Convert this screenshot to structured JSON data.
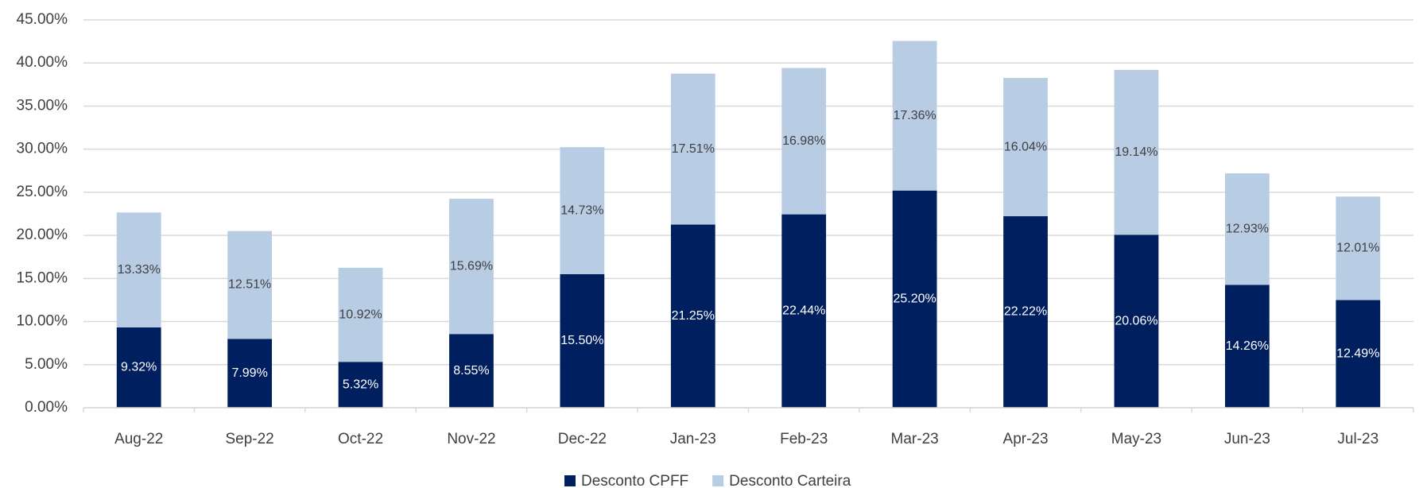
{
  "chart_data": {
    "type": "stacked_bar",
    "categories": [
      "Aug-22",
      "Sep-22",
      "Oct-22",
      "Nov-22",
      "Dec-22",
      "Jan-23",
      "Feb-23",
      "Mar-23",
      "Apr-23",
      "May-23",
      "Jun-23",
      "Jul-23"
    ],
    "series": [
      {
        "name": "Desconto CPFF",
        "color": "#001f5f",
        "values": [
          9.32,
          7.99,
          5.32,
          8.55,
          15.5,
          21.25,
          22.44,
          25.2,
          22.22,
          20.06,
          14.26,
          12.49
        ],
        "value_labels": [
          "9.32%",
          "7.99%",
          "5.32%",
          "8.55%",
          "15.50%",
          "21.25%",
          "22.44%",
          "25.20%",
          "22.22%",
          "20.06%",
          "14.26%",
          "12.49%"
        ]
      },
      {
        "name": "Desconto Carteira",
        "color": "#b8cce4",
        "values": [
          13.33,
          12.51,
          10.92,
          15.69,
          14.73,
          17.51,
          16.98,
          17.36,
          16.04,
          19.14,
          12.93,
          12.01
        ],
        "value_labels": [
          "13.33%",
          "12.51%",
          "10.92%",
          "15.69%",
          "14.73%",
          "17.51%",
          "16.98%",
          "17.36%",
          "16.04%",
          "19.14%",
          "12.93%",
          "12.01%"
        ]
      }
    ],
    "ylim": [
      0,
      45
    ],
    "yticks": [
      {
        "value": 0,
        "label": "0.00%"
      },
      {
        "value": 5,
        "label": "5.00%"
      },
      {
        "value": 10,
        "label": "10.00%"
      },
      {
        "value": 15,
        "label": "15.00%"
      },
      {
        "value": 20,
        "label": "20.00%"
      },
      {
        "value": 25,
        "label": "25.00%"
      },
      {
        "value": 30,
        "label": "30.00%"
      },
      {
        "value": 35,
        "label": "35.00%"
      },
      {
        "value": 40,
        "label": "40.00%"
      },
      {
        "value": 45,
        "label": "45.00%"
      }
    ],
    "grid": true,
    "legend": "bottom"
  }
}
